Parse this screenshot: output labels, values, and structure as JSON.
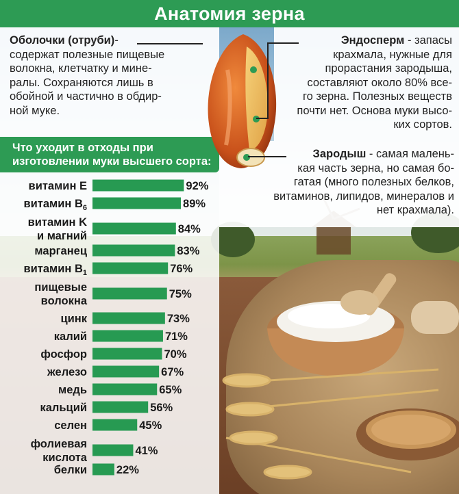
{
  "title": "Анатомия зерна",
  "shell": {
    "term": "Оболочки (отруби)",
    "lines": [
      "- ",
      "содержат полезные пищевые",
      "волокна, клетчатку и мине-",
      "ралы. Сохраняются лишь в",
      "обойной и частично в обдир-",
      "ной муке."
    ]
  },
  "endosperm": {
    "term": "Эндосперм",
    "lines": [
      " - запасы",
      "крахмала, нужные для",
      "прорастания зародыша,",
      "составляют около 80% все-",
      "го зерна. Полезных веществ",
      "почти нет. Основа муки высо-",
      "ких сортов."
    ]
  },
  "germ": {
    "term": "Зародыш",
    "lines": [
      " - самая малень-",
      "кая часть зерна, но самая бо-",
      "гатая (много полезных белков,",
      "витаминов, липидов, минералов и",
      "нет крахмала)."
    ]
  },
  "chart_header": "Что уходит в отходы при изготовлении муки высшего сорта:",
  "colors": {
    "accent_green": "#2d9b54",
    "bar_green": "#279a52"
  },
  "chart_data": {
    "type": "bar",
    "orientation": "horizontal",
    "title": "Что уходит в отходы при изготовлении муки высшего сорта:",
    "categories": [
      [
        "витамин E"
      ],
      [
        "витамин B",
        "6"
      ],
      [
        "витамин K",
        "и магний"
      ],
      [
        "марганец"
      ],
      [
        "витамин B",
        "1"
      ],
      [
        "пищевые",
        "волокна"
      ],
      [
        "цинк"
      ],
      [
        "калий"
      ],
      [
        "фосфор"
      ],
      [
        "железо"
      ],
      [
        "медь"
      ],
      [
        "кальций"
      ],
      [
        "селен"
      ],
      [
        "фолиевая",
        "кислота"
      ],
      [
        "белки"
      ]
    ],
    "category_text": [
      "витамин E",
      "витамин B6",
      "витамин K и магний",
      "марганец",
      "витамин B1",
      "пищевые волокна",
      "цинк",
      "калий",
      "фосфор",
      "железо",
      "медь",
      "кальций",
      "селен",
      "фолиевая кислота",
      "белки"
    ],
    "values": [
      92,
      89,
      84,
      83,
      76,
      75,
      73,
      71,
      70,
      67,
      65,
      56,
      45,
      41,
      22
    ],
    "value_labels": [
      "92%",
      "89%",
      "84%",
      "83%",
      "76%",
      "75%",
      "73%",
      "71%",
      "70%",
      "67%",
      "65%",
      "56%",
      "45%",
      "41%",
      "22%"
    ],
    "unit": "%",
    "xlim": [
      0,
      100
    ],
    "grid": false,
    "legend": "none"
  }
}
